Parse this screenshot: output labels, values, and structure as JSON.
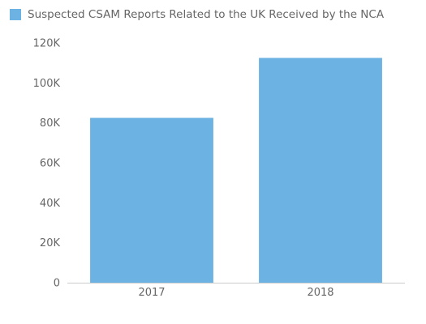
{
  "chart_data": {
    "type": "bar",
    "categories": [
      "2017",
      "2018"
    ],
    "series": [
      {
        "name": "Suspected CSAM Reports Related to the UK Received by the NCA",
        "values": [
          82500,
          112500
        ],
        "color": "#6cb2e2"
      }
    ],
    "ylim": [
      0,
      120000
    ],
    "yticks": [
      0,
      20000,
      40000,
      60000,
      80000,
      100000,
      120000
    ],
    "ytick_labels": [
      "0",
      "20K",
      "40K",
      "60K",
      "80K",
      "100K",
      "120K"
    ],
    "grid": false,
    "legend_position": "top-left",
    "axis_color": "#cccccc",
    "text_color": "#666666"
  }
}
